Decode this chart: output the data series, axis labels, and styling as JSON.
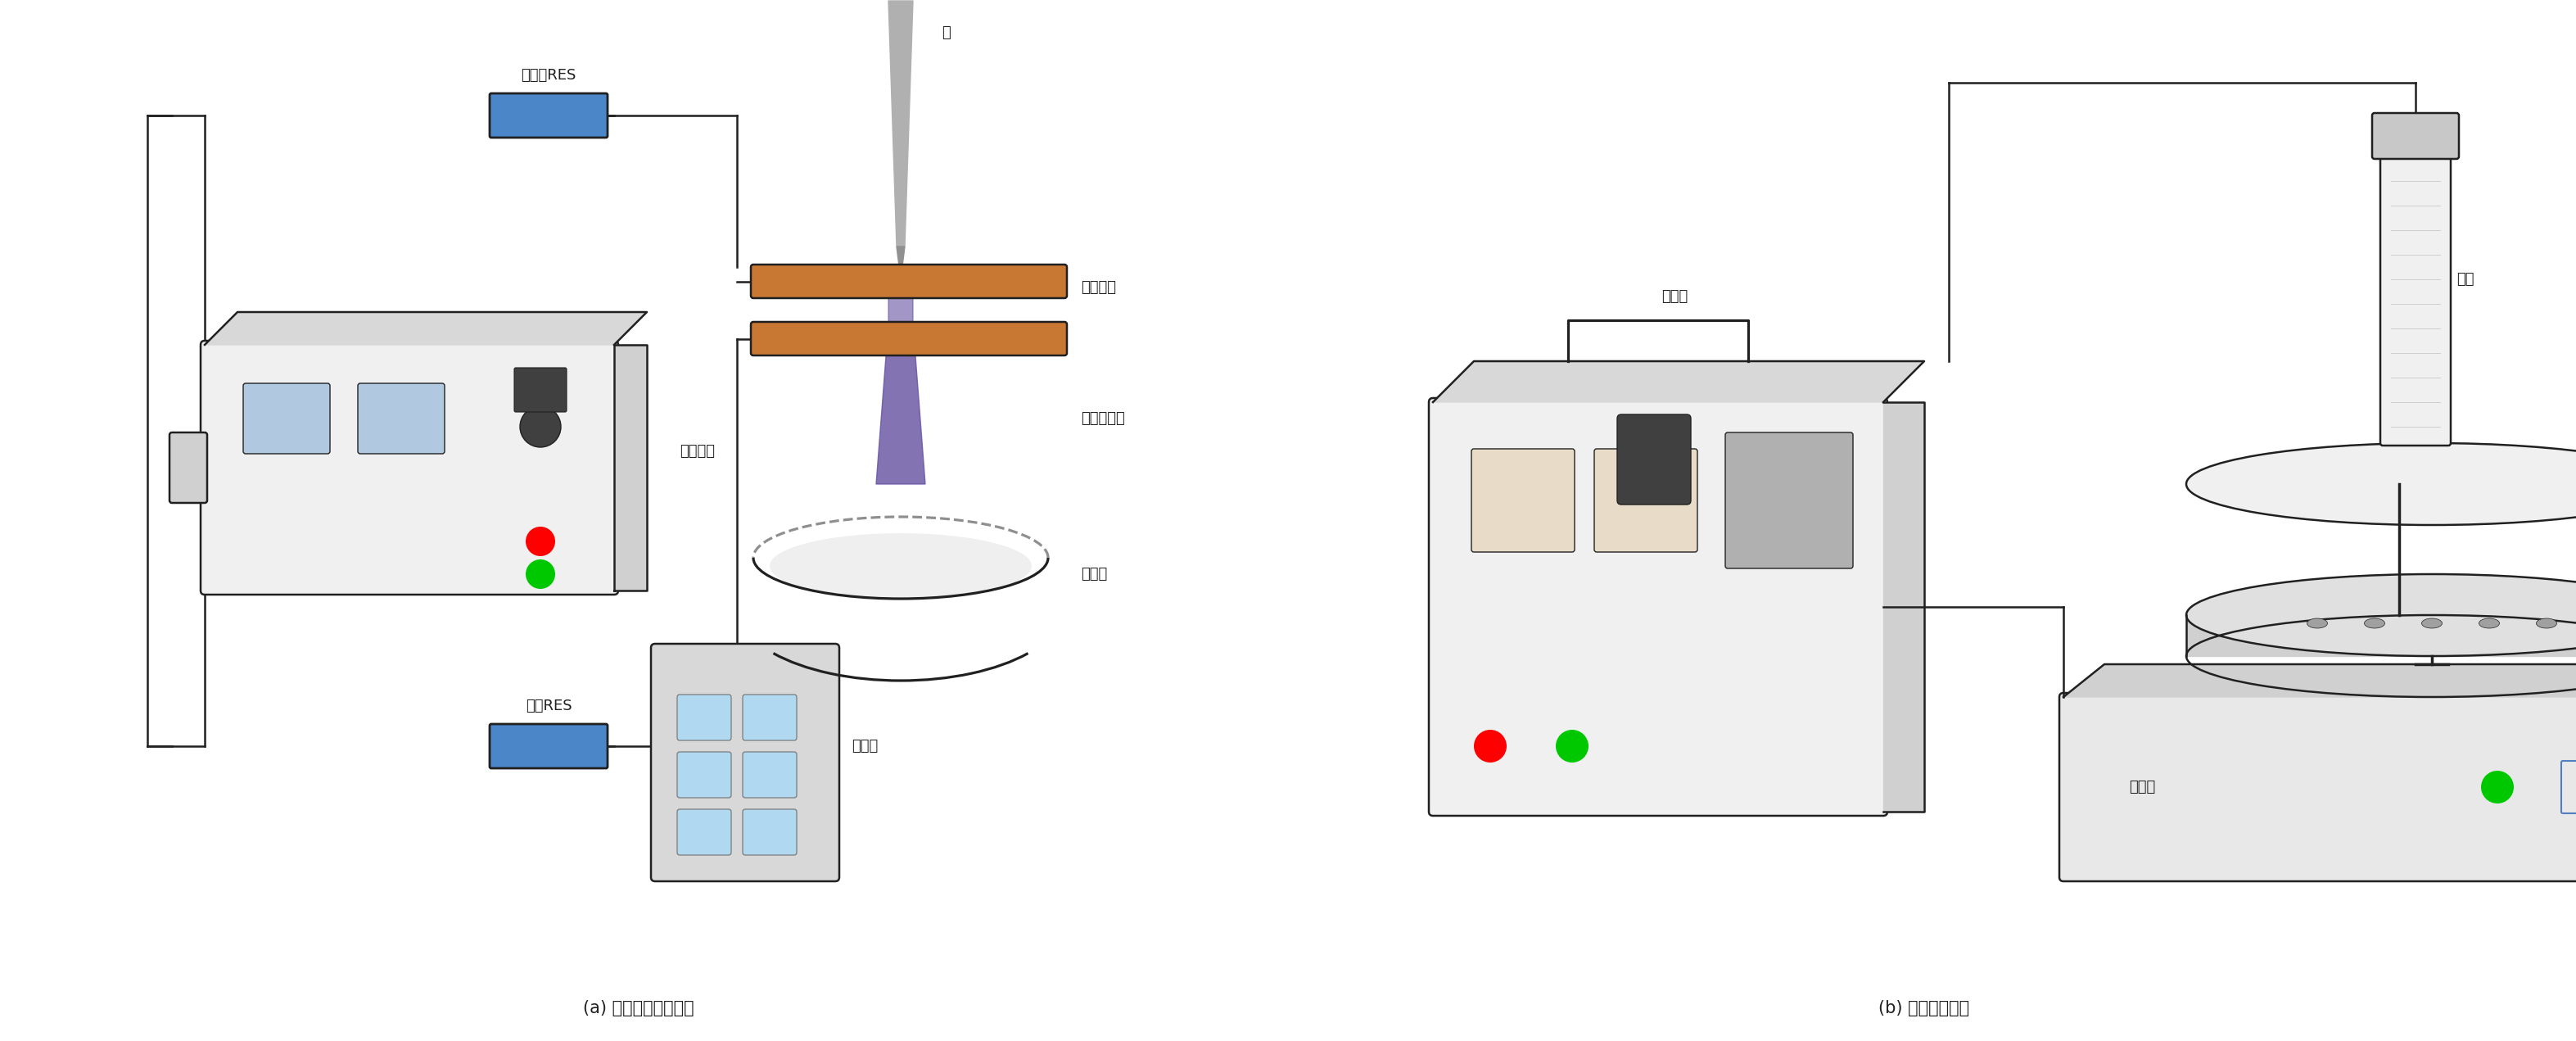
{
  "fig_width": 31.46,
  "fig_height": 12.71,
  "background": "#ffffff",
  "caption_a": "(a) 辉光放电等离子体",
  "caption_b": "(b) 光化学反应仪",
  "label_zhen": "镇流器RES",
  "label_zhen_res_color": "#4a86c8",
  "label_jian": "针",
  "label_yinjixun": "阴极循环",
  "label_denglizshe": "等离子射流",
  "label_fanyingqi_a": "反应器",
  "label_wendianya": "稳电压源",
  "label_jianyan": "检验RES",
  "label_wanyong": "万用表",
  "label_kongzhiqi": "控制器",
  "label_xideng": "氙灯",
  "label_fanyingqi_b": "反应器",
  "orange_color": "#c87832",
  "purple_color": "#6450a0",
  "blue_color": "#5080c0",
  "gray_color": "#909090",
  "light_gray": "#c8c8c8",
  "dark_line": "#202020",
  "box_fill": "#e8e8e8",
  "res_color": "#4a86c8"
}
